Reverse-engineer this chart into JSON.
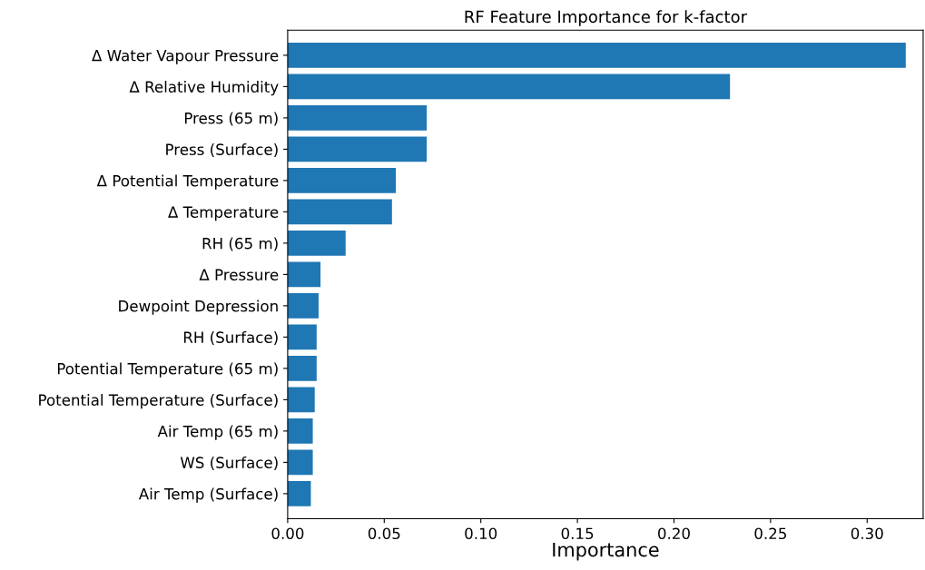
{
  "chart_data": {
    "type": "bar",
    "orientation": "horizontal",
    "title": "RF Feature Importance for k-factor",
    "xlabel": "Importance",
    "categories": [
      "Δ Water Vapour Pressure",
      "Δ Relative Humidity",
      "Press (65 m)",
      "Press (Surface)",
      "Δ Potential Temperature",
      "Δ Temperature",
      "RH (65 m)",
      "Δ Pressure",
      "Dewpoint Depression",
      "RH (Surface)",
      "Potential Temperature (65 m)",
      "Potential Temperature (Surface)",
      "Air Temp (65 m)",
      "WS (Surface)",
      "Air Temp (Surface)"
    ],
    "values": [
      0.32,
      0.229,
      0.072,
      0.072,
      0.056,
      0.054,
      0.03,
      0.017,
      0.016,
      0.015,
      0.015,
      0.014,
      0.013,
      0.013,
      0.012
    ],
    "color": "#1f77b4",
    "xlim": [
      0,
      0.329
    ],
    "xticks": [
      {
        "value": 0,
        "label": "0.00"
      },
      {
        "value": 0.05,
        "label": "0.05"
      },
      {
        "value": 0.1,
        "label": "0.10"
      },
      {
        "value": 0.15,
        "label": "0.15"
      },
      {
        "value": 0.2,
        "label": "0.20"
      },
      {
        "value": 0.25,
        "label": "0.25"
      },
      {
        "value": 0.3,
        "label": "0.30"
      }
    ],
    "grid": false,
    "legend": false
  }
}
